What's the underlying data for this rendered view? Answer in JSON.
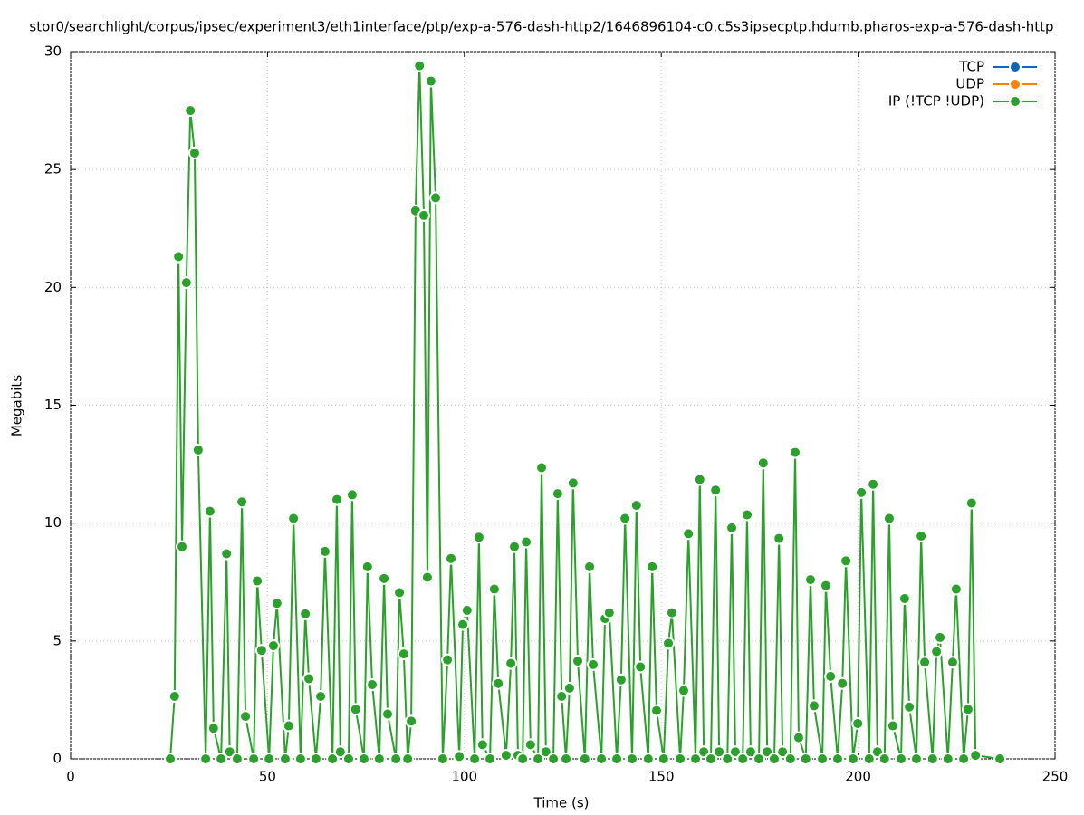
{
  "chart_data": {
    "type": "line",
    "title": "stor0/searchlight/corpus/ipsec/experiment3/eth1interface/ptp/exp-a-576-dash-http2/1646896104-c0.c5s3ipsecptp.hdumb.pharos-exp-a-576-dash-http",
    "xlabel": "Time (s)",
    "ylabel": "Megabits",
    "xlim": [
      0,
      250
    ],
    "xticks": [
      0,
      50,
      100,
      150,
      200,
      250
    ],
    "ylim": [
      0,
      30
    ],
    "yticks": [
      0,
      5,
      10,
      15,
      20,
      25,
      30
    ],
    "grid": true,
    "legend": "top-right",
    "x": [
      25.3,
      26.4,
      27.4,
      28.3,
      29.4,
      30.4,
      31.5,
      32.4,
      34.3,
      35.4,
      36.3,
      38.2,
      39.6,
      40.4,
      42.3,
      43.5,
      44.4,
      46.5,
      47.4,
      48.5,
      50.4,
      51.5,
      52.4,
      54.5,
      55.4,
      56.6,
      58.4,
      59.6,
      60.5,
      62.3,
      63.5,
      64.6,
      66.5,
      67.6,
      68.5,
      70.6,
      71.5,
      72.4,
      74.5,
      75.4,
      76.6,
      78.4,
      79.6,
      80.5,
      82.6,
      83.5,
      84.6,
      85.6,
      86.5,
      87.6,
      88.6,
      89.7,
      90.6,
      91.5,
      92.7,
      94.5,
      95.7,
      96.6,
      98.7,
      99.6,
      100.7,
      102.6,
      103.7,
      104.6,
      106.5,
      107.6,
      108.6,
      110.6,
      111.8,
      112.7,
      113.6,
      114.8,
      115.7,
      116.8,
      118.7,
      119.6,
      120.7,
      122.6,
      123.7,
      124.7,
      125.8,
      126.7,
      127.6,
      128.8,
      130.6,
      131.8,
      132.7,
      134.8,
      135.7,
      136.8,
      138.7,
      139.8,
      140.8,
      142.6,
      143.7,
      144.7,
      146.7,
      147.7,
      148.8,
      150.6,
      151.8,
      152.7,
      154.8,
      155.7,
      156.9,
      158.7,
      159.8,
      160.8,
      162.6,
      163.8,
      164.7,
      166.8,
      167.9,
      168.8,
      170.7,
      171.8,
      172.7,
      174.8,
      175.9,
      176.9,
      178.7,
      179.9,
      180.8,
      182.8,
      184.0,
      184.9,
      186.7,
      187.9,
      188.8,
      190.9,
      191.8,
      193.0,
      194.8,
      196.0,
      196.9,
      198.7,
      199.9,
      200.8,
      202.8,
      203.8,
      204.9,
      206.7,
      207.9,
      208.8,
      210.9,
      211.8,
      213.0,
      214.8,
      216.0,
      216.9,
      218.9,
      219.9,
      220.8,
      222.8,
      224.0,
      224.9,
      226.8,
      227.9,
      228.8,
      229.8,
      236.0
    ],
    "series": [
      {
        "name": "TCP",
        "color": "#1565b5"
      },
      {
        "name": "UDP",
        "color": "#f5820d"
      },
      {
        "name": "IP (!TCP  !UDP)",
        "color": "#2ca02c",
        "values": [
          0,
          2.65,
          21.3,
          9.0,
          20.2,
          27.5,
          25.7,
          13.1,
          0,
          10.5,
          1.3,
          0,
          8.7,
          0.3,
          0,
          10.9,
          1.8,
          0,
          7.55,
          4.6,
          0,
          4.8,
          6.6,
          0,
          1.4,
          10.2,
          0,
          6.15,
          3.4,
          0,
          2.65,
          8.8,
          0,
          11.0,
          0.3,
          0,
          11.2,
          2.1,
          0,
          8.15,
          3.15,
          0,
          7.65,
          1.9,
          0,
          7.05,
          4.45,
          0,
          1.6,
          23.25,
          29.4,
          23.05,
          7.7,
          28.75,
          23.8,
          0,
          4.2,
          8.5,
          0.1,
          5.7,
          6.3,
          0,
          9.4,
          0.6,
          0,
          7.2,
          3.2,
          0.15,
          4.05,
          9.0,
          0.15,
          0,
          9.2,
          0.6,
          0,
          12.35,
          0.3,
          0,
          11.25,
          2.65,
          0,
          3.0,
          11.7,
          4.15,
          0,
          8.15,
          4.0,
          0,
          5.95,
          6.2,
          0,
          3.35,
          10.2,
          0,
          10.75,
          3.9,
          0,
          8.15,
          2.05,
          0,
          4.9,
          6.2,
          0,
          2.9,
          9.55,
          0,
          11.85,
          0.3,
          0,
          11.4,
          0.3,
          0,
          9.8,
          0.3,
          0,
          10.35,
          0.3,
          0,
          12.55,
          0.3,
          0,
          9.35,
          0.3,
          0,
          13.0,
          0.9,
          0,
          7.6,
          2.25,
          0,
          7.35,
          3.5,
          0,
          3.2,
          8.4,
          0,
          1.5,
          11.3,
          0,
          11.65,
          0.3,
          0,
          10.2,
          1.4,
          0,
          6.8,
          2.2,
          0,
          9.45,
          4.1,
          0,
          4.55,
          5.15,
          0,
          4.1,
          7.2,
          0,
          2.1,
          10.85,
          0.15,
          0
        ]
      }
    ]
  }
}
